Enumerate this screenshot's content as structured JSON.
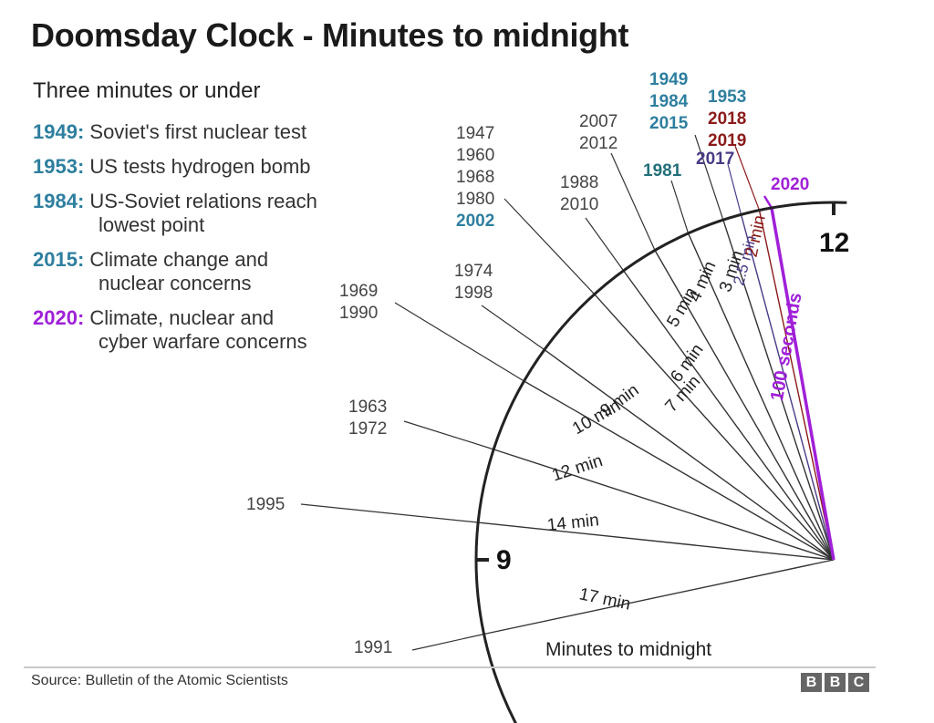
{
  "title": "Doomsday Clock - Minutes to midnight",
  "subtitle": "Three minutes or under",
  "legend": [
    {
      "year": "1949:",
      "desc": "Soviet's first nuclear test",
      "color": "#2e7f9f"
    },
    {
      "year": "1953:",
      "desc": "US tests hydrogen bomb",
      "color": "#2e7f9f"
    },
    {
      "year": "1984:",
      "desc": "US-Soviet relations reach",
      "desc2": "lowest point",
      "color": "#2e7f9f"
    },
    {
      "year": "2015:",
      "desc": "Climate change and",
      "desc2": "nuclear concerns",
      "color": "#2e7f9f"
    },
    {
      "year": "2020:",
      "desc": "Climate, nuclear and",
      "desc2": "cyber warfare concerns",
      "color": "#a020d8"
    }
  ],
  "clock": {
    "hour_12": "12",
    "hour_9": "9",
    "axis_label": "Minutes to midnight",
    "hands": [
      {
        "minutes": 17,
        "label": "17 min",
        "years": [
          {
            "text": "1991",
            "color": "#444"
          }
        ],
        "color": "#333"
      },
      {
        "minutes": 14,
        "label": "14 min",
        "years": [
          {
            "text": "1995",
            "color": "#444"
          }
        ],
        "color": "#333"
      },
      {
        "minutes": 12,
        "label": "12 min",
        "years": [
          {
            "text": "1963",
            "color": "#444"
          },
          {
            "text": "1972",
            "color": "#444"
          }
        ],
        "color": "#333"
      },
      {
        "minutes": 10,
        "label": "10 min",
        "years": [
          {
            "text": "1969",
            "color": "#444"
          },
          {
            "text": "1990",
            "color": "#444"
          }
        ],
        "color": "#333"
      },
      {
        "minutes": 9,
        "label": "9 min",
        "years": [
          {
            "text": "1974",
            "color": "#444"
          },
          {
            "text": "1998",
            "color": "#444"
          }
        ],
        "color": "#333"
      },
      {
        "minutes": 7,
        "label": "7 min",
        "years": [
          {
            "text": "1947",
            "color": "#444"
          },
          {
            "text": "1960",
            "color": "#444"
          },
          {
            "text": "1968",
            "color": "#444"
          },
          {
            "text": "1980",
            "color": "#444"
          },
          {
            "text": "2002",
            "color": "#2e7f9f"
          }
        ],
        "color": "#333"
      },
      {
        "minutes": 6,
        "label": "6 min",
        "years": [
          {
            "text": "1988",
            "color": "#444"
          },
          {
            "text": "2010",
            "color": "#444"
          }
        ],
        "color": "#333"
      },
      {
        "minutes": 5,
        "label": "5 min",
        "years": [
          {
            "text": "2007",
            "color": "#444"
          },
          {
            "text": "2012",
            "color": "#444"
          }
        ],
        "color": "#333"
      },
      {
        "minutes": 4,
        "label": "4 min",
        "years": [
          {
            "text": "1981",
            "color": "#23707a"
          }
        ],
        "color": "#333"
      },
      {
        "minutes": 3,
        "label": "3 min",
        "years": [
          {
            "text": "1949",
            "color": "#2e7f9f"
          },
          {
            "text": "1984",
            "color": "#2e7f9f"
          },
          {
            "text": "2015",
            "color": "#2e7f9f"
          }
        ],
        "color": "#333"
      },
      {
        "minutes": 2.5,
        "label": "2.5 min",
        "years": [
          {
            "text": "2017",
            "color": "#4a3a86"
          }
        ],
        "color": "#4a3a86"
      },
      {
        "minutes": 2,
        "label": "2 min",
        "years": [
          {
            "text": "1953",
            "color": "#2e7f9f"
          },
          {
            "text": "2018",
            "color": "#8b1a1a"
          },
          {
            "text": "2019",
            "color": "#8b1a1a"
          }
        ],
        "color": "#8b1a1a"
      },
      {
        "minutes": 1.6667,
        "label": "100 seconds",
        "years": [
          {
            "text": "2020",
            "color": "#a020d8"
          }
        ],
        "color": "#a020d8"
      }
    ]
  },
  "source": "Source: Bulletin of the Atomic Scientists",
  "logo": [
    "B",
    "B",
    "C"
  ]
}
